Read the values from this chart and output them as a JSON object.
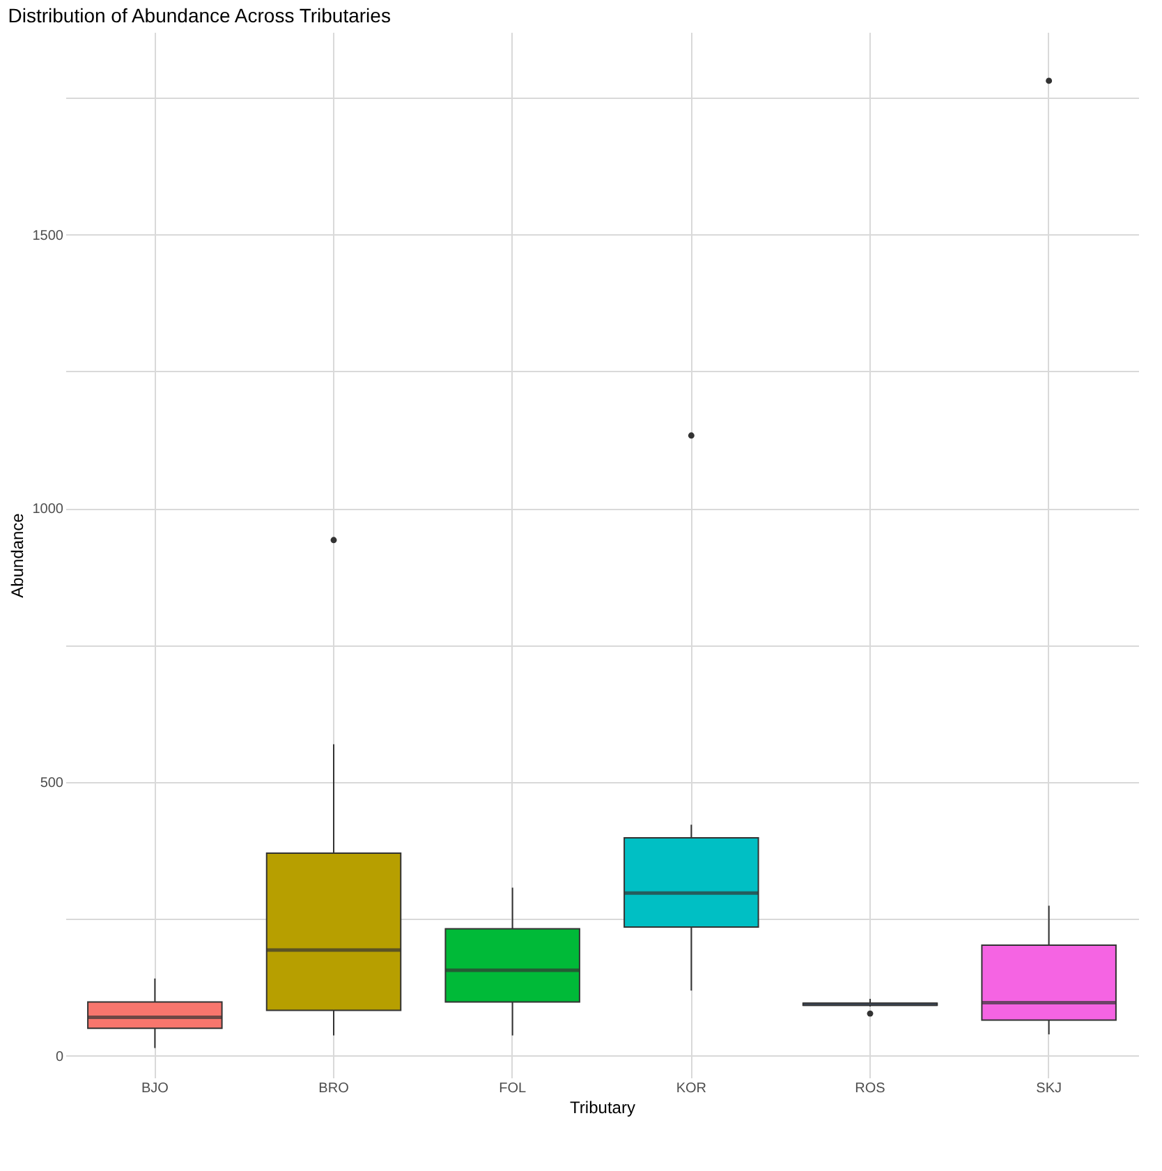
{
  "chart_data": {
    "type": "box",
    "title": "Distribution of Abundance Across Tributaries",
    "xlabel": "Tributary",
    "ylabel": "Abundance",
    "categories": [
      "BJO",
      "BRO",
      "FOL",
      "KOR",
      "ROS",
      "SKJ"
    ],
    "colors": [
      "#f8766d",
      "#b79f00",
      "#00ba38",
      "#00bfc4",
      "#619cff",
      "#f564e3"
    ],
    "boxes": [
      {
        "low": 14,
        "q1": 50,
        "median": 70,
        "q3": 98,
        "high": 141
      },
      {
        "low": 37,
        "q1": 83,
        "median": 193,
        "q3": 370,
        "high": 569,
        "outliers": [
          942
        ]
      },
      {
        "low": 37,
        "q1": 98,
        "median": 156,
        "q3": 232,
        "high": 307
      },
      {
        "low": 119,
        "q1": 235,
        "median": 297,
        "q3": 398,
        "high": 422,
        "outliers": [
          1133
        ]
      },
      {
        "low": 90,
        "q1": 92,
        "median": 94,
        "q3": 96,
        "high": 104,
        "outliers": [
          77
        ]
      },
      {
        "low": 39,
        "q1": 65,
        "median": 97,
        "q3": 202,
        "high": 274,
        "outliers": [
          1781
        ]
      }
    ],
    "ylim": [
      -40,
      1870
    ],
    "yticks": [
      0,
      {
        "value": 250,
        "label": null
      },
      500,
      {
        "value": 750,
        "label": null
      },
      1000,
      {
        "value": 1250,
        "label": null
      },
      1500,
      {
        "value": 1750,
        "label": null
      }
    ],
    "grid": true,
    "legend": false
  }
}
